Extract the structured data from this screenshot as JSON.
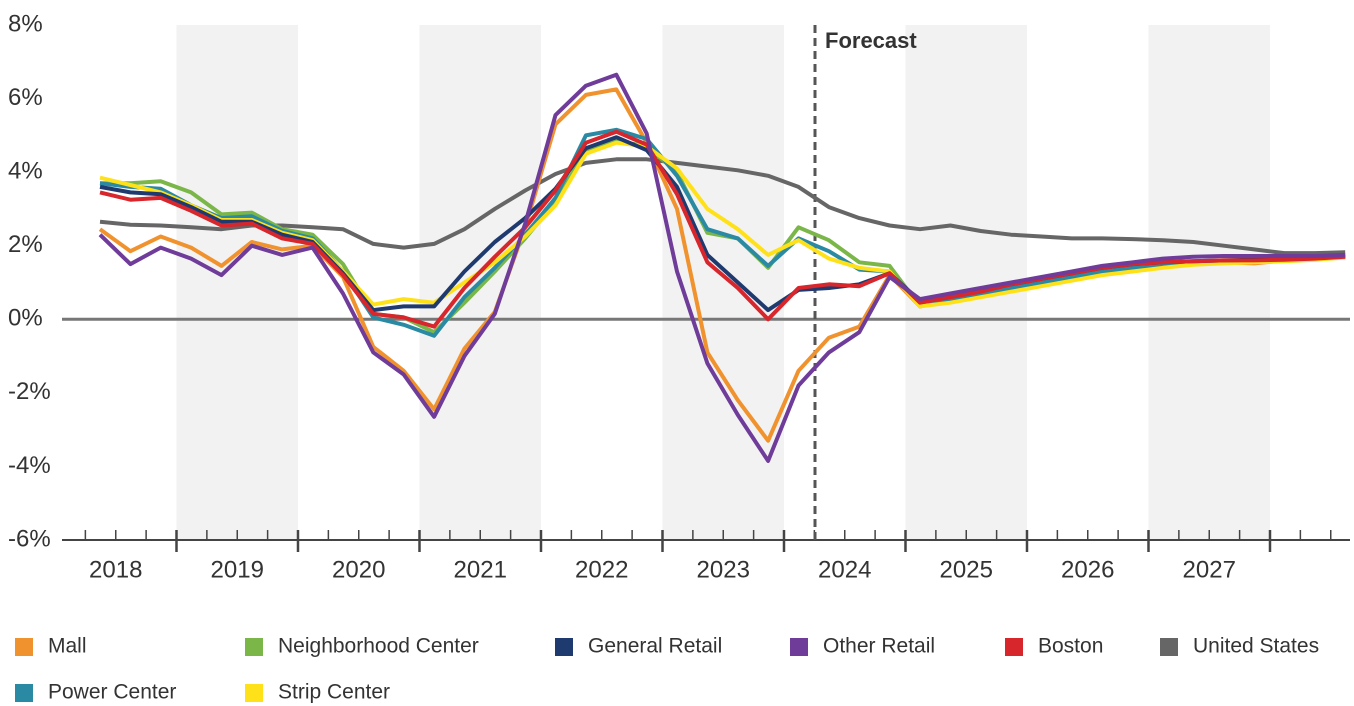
{
  "chart_data": {
    "type": "line",
    "annotation": "Forecast",
    "year_labels": [
      "2018",
      "2019",
      "2020",
      "2021",
      "2022",
      "2023",
      "2024",
      "2025",
      "2026",
      "2027"
    ],
    "categories": [
      null,
      null,
      null,
      null,
      null,
      null,
      null,
      null,
      null,
      null,
      null,
      null,
      null,
      null,
      null,
      null,
      null,
      null,
      null,
      null,
      null,
      null,
      null,
      null,
      null,
      null,
      null,
      null,
      null,
      null,
      null,
      null,
      null,
      null,
      null,
      null,
      null,
      null,
      null,
      null,
      null,
      null
    ],
    "ylim": [
      -6,
      8
    ],
    "yticks": [
      {
        "value": -6,
        "label": "-6%"
      },
      {
        "value": -4,
        "label": "-4%"
      },
      {
        "value": -2,
        "label": "-2%"
      },
      {
        "value": 0,
        "label": "0%"
      },
      {
        "value": 2,
        "label": "2%"
      },
      {
        "value": 4,
        "label": "4%"
      },
      {
        "value": 6,
        "label": "6%"
      },
      {
        "value": 8,
        "label": "8%"
      }
    ],
    "grid": false,
    "series": [
      {
        "name": "Mall",
        "color": "#f0922d",
        "values": [
          2.45,
          1.85,
          2.25,
          1.95,
          1.45,
          2.1,
          1.9,
          2.0,
          1.15,
          -0.75,
          -1.4,
          -2.45,
          -0.8,
          0.2,
          2.5,
          5.3,
          6.1,
          6.25,
          4.8,
          3.0,
          -0.9,
          -2.2,
          -3.3,
          -1.4,
          -0.5,
          -0.2,
          1.2,
          0.35,
          0.55,
          0.7,
          0.9,
          1.05,
          1.2,
          1.35,
          1.45,
          1.5,
          1.52,
          1.55,
          1.52,
          1.6,
          1.65,
          1.7
        ]
      },
      {
        "name": "Neighborhood Center",
        "color": "#7ab648",
        "values": [
          3.7,
          3.7,
          3.75,
          3.45,
          2.85,
          2.9,
          2.45,
          2.3,
          1.5,
          0.15,
          0.05,
          -0.35,
          0.45,
          1.3,
          2.2,
          3.2,
          4.6,
          4.85,
          4.7,
          4.0,
          2.35,
          2.2,
          1.4,
          2.5,
          2.15,
          1.55,
          1.45,
          0.35,
          0.5,
          0.65,
          0.8,
          0.95,
          1.1,
          1.25,
          1.35,
          1.45,
          1.5,
          1.55,
          1.58,
          1.6,
          1.65,
          1.7
        ]
      },
      {
        "name": "General Retail",
        "color": "#1f3a6e",
        "values": [
          3.6,
          3.45,
          3.4,
          3.05,
          2.65,
          2.65,
          2.3,
          2.1,
          1.25,
          0.25,
          0.35,
          0.35,
          1.3,
          2.1,
          2.75,
          3.55,
          4.65,
          4.95,
          4.6,
          3.6,
          1.75,
          1.0,
          0.25,
          0.8,
          0.85,
          0.95,
          1.25,
          0.5,
          0.65,
          0.8,
          0.95,
          1.1,
          1.25,
          1.4,
          1.5,
          1.55,
          1.58,
          1.6,
          1.62,
          1.65,
          1.68,
          1.72
        ]
      },
      {
        "name": "Other Retail",
        "color": "#6f3c9a",
        "values": [
          2.3,
          1.5,
          1.95,
          1.65,
          1.2,
          2.0,
          1.75,
          1.95,
          0.7,
          -0.9,
          -1.5,
          -2.65,
          -1.0,
          0.15,
          2.6,
          5.55,
          6.35,
          6.65,
          5.05,
          1.3,
          -1.2,
          -2.6,
          -3.85,
          -1.8,
          -0.9,
          -0.35,
          1.15,
          0.55,
          0.7,
          0.85,
          1.0,
          1.15,
          1.3,
          1.45,
          1.55,
          1.65,
          1.7,
          1.72,
          1.72,
          1.72,
          1.72,
          1.75
        ]
      },
      {
        "name": "Boston",
        "color": "#d7262c",
        "values": [
          3.45,
          3.25,
          3.3,
          2.95,
          2.55,
          2.6,
          2.2,
          2.05,
          1.2,
          0.15,
          0.05,
          -0.2,
          0.85,
          1.7,
          2.5,
          3.5,
          4.8,
          5.1,
          4.75,
          3.4,
          1.55,
          0.85,
          0.0,
          0.85,
          0.95,
          0.9,
          1.25,
          0.45,
          0.6,
          0.75,
          0.95,
          1.1,
          1.25,
          1.4,
          1.5,
          1.55,
          1.58,
          1.6,
          1.6,
          1.62,
          1.65,
          1.7
        ]
      },
      {
        "name": "United States",
        "color": "#666666",
        "values": [
          2.65,
          2.57,
          2.55,
          2.5,
          2.45,
          2.55,
          2.55,
          2.5,
          2.45,
          2.05,
          1.95,
          2.05,
          2.45,
          3.0,
          3.5,
          3.95,
          4.25,
          4.35,
          4.35,
          4.25,
          4.15,
          4.05,
          3.9,
          3.6,
          3.05,
          2.75,
          2.55,
          2.45,
          2.55,
          2.4,
          2.3,
          2.25,
          2.2,
          2.2,
          2.18,
          2.15,
          2.1,
          2.0,
          1.9,
          1.8,
          1.8,
          1.82
        ]
      },
      {
        "name": "Power Center",
        "color": "#2a8aa3",
        "values": [
          3.7,
          3.6,
          3.55,
          3.1,
          2.75,
          2.8,
          2.4,
          2.2,
          1.3,
          0.05,
          -0.15,
          -0.45,
          0.6,
          1.4,
          2.3,
          3.3,
          5.0,
          5.15,
          4.9,
          3.9,
          2.45,
          2.2,
          1.45,
          2.2,
          1.85,
          1.35,
          1.3,
          0.4,
          0.55,
          0.7,
          0.85,
          1.0,
          1.15,
          1.3,
          1.4,
          1.5,
          1.55,
          1.58,
          1.6,
          1.62,
          1.65,
          1.7
        ]
      },
      {
        "name": "Strip Center",
        "color": "#ffe11a",
        "values": [
          3.85,
          3.65,
          3.45,
          3.1,
          2.7,
          2.7,
          2.35,
          2.15,
          1.3,
          0.4,
          0.55,
          0.45,
          1.0,
          1.55,
          2.25,
          3.1,
          4.5,
          4.8,
          4.7,
          4.1,
          3.0,
          2.45,
          1.75,
          2.15,
          1.65,
          1.4,
          1.3,
          0.35,
          0.45,
          0.6,
          0.75,
          0.9,
          1.05,
          1.2,
          1.3,
          1.4,
          1.48,
          1.52,
          1.55,
          1.58,
          1.62,
          1.68
        ]
      }
    ]
  }
}
